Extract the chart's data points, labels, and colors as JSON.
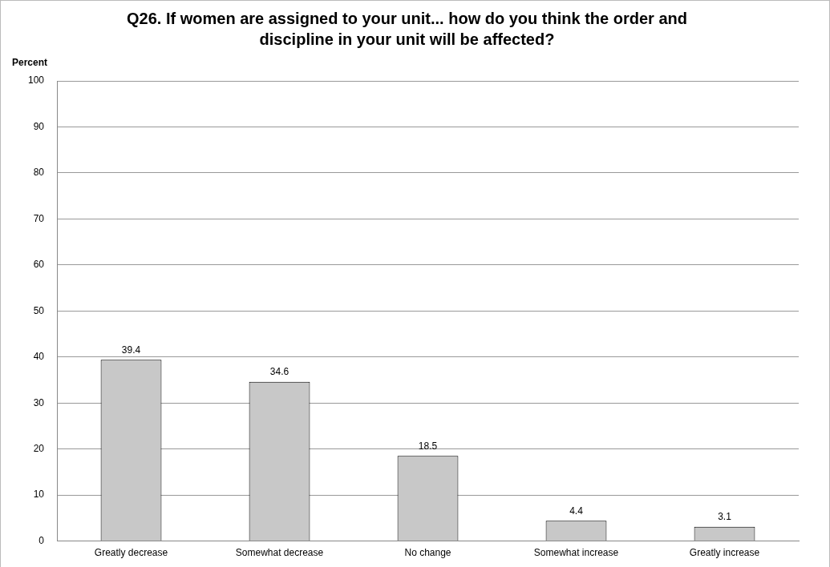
{
  "chart_data": {
    "type": "bar",
    "title": "Q26. If women are assigned to your unit... how do you think the order and discipline in your unit will be affected?",
    "ylabel": "Percent",
    "categories": [
      "Greatly decrease",
      "Somewhat decrease",
      "No change",
      "Somewhat increase",
      "Greatly increase"
    ],
    "values": [
      39.4,
      34.6,
      18.5,
      4.4,
      3.1
    ],
    "color": "#c8c8c8",
    "ylim": [
      0,
      100
    ],
    "yticks": [
      0,
      10,
      20,
      30,
      40,
      50,
      60,
      70,
      80,
      90,
      100
    ],
    "grid": "y",
    "data_labels": true
  }
}
